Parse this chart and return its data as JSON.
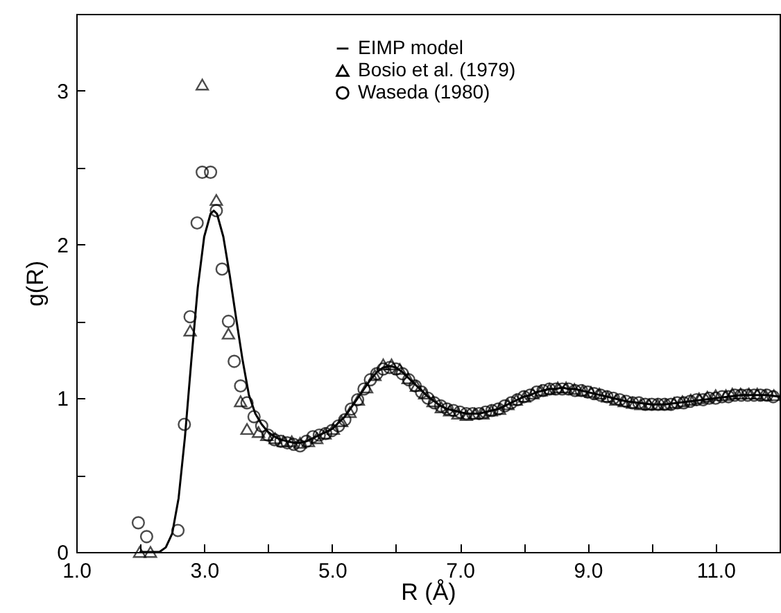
{
  "chart_data": {
    "type": "line",
    "xlabel": "R (Å)",
    "ylabel": "g(R)",
    "xlim": [
      1,
      12
    ],
    "ylim": [
      0,
      3.5
    ],
    "xticks": [
      {
        "value": 1,
        "label": "1.0"
      },
      {
        "value": 2,
        "label": null
      },
      {
        "value": 3,
        "label": "3.0"
      },
      {
        "value": 4,
        "label": null
      },
      {
        "value": 5,
        "label": "5.0"
      },
      {
        "value": 6,
        "label": null
      },
      {
        "value": 7,
        "label": "7.0"
      },
      {
        "value": 8,
        "label": null
      },
      {
        "value": 9,
        "label": "9.0"
      },
      {
        "value": 10,
        "label": null
      },
      {
        "value": 11,
        "label": "11.0"
      },
      {
        "value": 12,
        "label": null
      }
    ],
    "yticks": [
      0,
      {
        "value": 0.5,
        "label": null
      },
      1,
      {
        "value": 1.5,
        "label": null
      },
      2,
      {
        "value": 2.5,
        "label": null
      },
      3
    ],
    "legend": "top right",
    "grid": false,
    "series": [
      {
        "name": "EIMP model",
        "marker": "none",
        "color": "#000000",
        "x": [
          2.0,
          2.3,
          2.4,
          2.5,
          2.6,
          2.7,
          2.8,
          2.9,
          3.0,
          3.1,
          3.15,
          3.2,
          3.3,
          3.4,
          3.5,
          3.6,
          3.7,
          3.8,
          3.9,
          4.0,
          4.1,
          4.2,
          4.3,
          4.4,
          4.5,
          4.6,
          4.7,
          4.8,
          4.9,
          5.0,
          5.1,
          5.2,
          5.3,
          5.4,
          5.5,
          5.6,
          5.7,
          5.8,
          5.9,
          6.0,
          6.1,
          6.2,
          6.3,
          6.4,
          6.5,
          6.6,
          6.7,
          6.8,
          6.9,
          7.0,
          7.1,
          7.2,
          7.3,
          7.4,
          7.5,
          7.6,
          7.7,
          7.8,
          7.9,
          8.0,
          8.1,
          8.2,
          8.3,
          8.4,
          8.5,
          8.6,
          8.7,
          8.8,
          8.9,
          9.0,
          9.2,
          9.4,
          9.6,
          9.8,
          10.0,
          10.2,
          10.4,
          10.6,
          10.8,
          11.0,
          11.2,
          11.4,
          11.6,
          11.8,
          12.0
        ],
        "values": [
          0,
          0,
          0.03,
          0.12,
          0.35,
          0.75,
          1.25,
          1.72,
          2.05,
          2.2,
          2.22,
          2.2,
          2.05,
          1.8,
          1.52,
          1.25,
          1.02,
          0.9,
          0.83,
          0.78,
          0.75,
          0.73,
          0.72,
          0.71,
          0.71,
          0.72,
          0.74,
          0.76,
          0.78,
          0.8,
          0.84,
          0.88,
          0.94,
          1.0,
          1.06,
          1.12,
          1.17,
          1.2,
          1.21,
          1.2,
          1.17,
          1.13,
          1.09,
          1.05,
          1.01,
          0.98,
          0.95,
          0.93,
          0.92,
          0.91,
          0.9,
          0.9,
          0.9,
          0.91,
          0.92,
          0.93,
          0.95,
          0.97,
          0.99,
          1.01,
          1.02,
          1.04,
          1.05,
          1.06,
          1.06,
          1.07,
          1.06,
          1.06,
          1.05,
          1.04,
          1.02,
          1.0,
          0.98,
          0.97,
          0.96,
          0.96,
          0.97,
          0.98,
          0.99,
          1.0,
          1.01,
          1.02,
          1.02,
          1.02,
          1.01
        ]
      },
      {
        "name": "Bosio et al. (1979)",
        "type": "scatter",
        "marker": "triangle",
        "color": "#000000",
        "x": [
          1.99,
          2.16,
          2.78,
          2.97,
          3.19,
          3.38,
          3.57,
          3.67,
          3.85,
          3.98,
          4.11,
          4.24,
          4.37,
          4.5,
          4.63,
          4.76,
          4.89,
          5.02,
          5.15,
          5.28,
          5.41,
          5.54,
          5.67,
          5.8,
          5.93,
          6.06,
          6.19,
          6.32,
          6.45,
          6.58,
          6.71,
          6.84,
          6.97,
          7.1,
          7.23,
          7.36,
          7.49,
          7.62,
          7.75,
          7.88,
          8.01,
          8.14,
          8.27,
          8.4,
          8.53,
          8.66,
          8.79,
          8.92,
          9.05,
          9.18,
          9.31,
          9.44,
          9.57,
          9.7,
          9.83,
          9.96,
          10.09,
          10.22,
          10.35,
          10.48,
          10.61,
          10.74,
          10.87,
          11.0,
          11.16,
          11.26,
          11.39,
          11.52,
          11.65,
          11.78,
          11.91
        ],
        "values": [
          0,
          0,
          1.44,
          3.04,
          2.29,
          1.42,
          0.98,
          0.8,
          0.78,
          0.76,
          0.74,
          0.72,
          0.72,
          0.71,
          0.72,
          0.74,
          0.77,
          0.8,
          0.85,
          0.91,
          0.99,
          1.07,
          1.15,
          1.22,
          1.22,
          1.19,
          1.13,
          1.08,
          1.03,
          0.98,
          0.94,
          0.92,
          0.9,
          0.89,
          0.9,
          0.9,
          0.92,
          0.93,
          0.96,
          0.99,
          1.01,
          1.03,
          1.05,
          1.06,
          1.07,
          1.07,
          1.06,
          1.05,
          1.04,
          1.03,
          1.01,
          0.99,
          0.98,
          0.97,
          0.96,
          0.96,
          0.96,
          0.96,
          0.97,
          0.98,
          0.99,
          1.0,
          1.01,
          1.02,
          1.02,
          1.03,
          1.03,
          1.03,
          1.03,
          1.02,
          1.02
        ]
      },
      {
        "name": "Waseda (1980)",
        "type": "scatter",
        "marker": "circle",
        "color": "#000000",
        "x": [
          1.97,
          2.1,
          2.59,
          2.69,
          2.78,
          2.89,
          2.97,
          3.1,
          3.19,
          3.28,
          3.38,
          3.47,
          3.57,
          3.67,
          3.78,
          3.9,
          4.0,
          4.1,
          4.2,
          4.3,
          4.4,
          4.5,
          4.6,
          4.7,
          4.8,
          4.9,
          5.0,
          5.1,
          5.2,
          5.3,
          5.4,
          5.5,
          5.6,
          5.7,
          5.8,
          5.9,
          6.0,
          6.1,
          6.2,
          6.3,
          6.4,
          6.5,
          6.6,
          6.7,
          6.8,
          6.9,
          7.0,
          7.1,
          7.2,
          7.3,
          7.4,
          7.5,
          7.6,
          7.7,
          7.8,
          7.9,
          8.0,
          8.1,
          8.2,
          8.3,
          8.4,
          8.5,
          8.6,
          8.7,
          8.8,
          8.9,
          9.0,
          9.1,
          9.2,
          9.3,
          9.4,
          9.5,
          9.6,
          9.7,
          9.8,
          9.9,
          10.0,
          10.1,
          10.2,
          10.3,
          10.4,
          10.5,
          10.6,
          10.7,
          10.8,
          10.9,
          11.0,
          11.1,
          11.2,
          11.3,
          11.4,
          11.5,
          11.6,
          11.7,
          11.8,
          11.9
        ],
        "values": [
          0.19,
          0.1,
          0.14,
          0.83,
          1.53,
          2.14,
          2.47,
          2.47,
          2.22,
          1.84,
          1.5,
          1.24,
          1.08,
          0.97,
          0.88,
          0.82,
          0.76,
          0.73,
          0.72,
          0.71,
          0.7,
          0.69,
          0.72,
          0.75,
          0.76,
          0.77,
          0.79,
          0.82,
          0.86,
          0.93,
          0.99,
          1.06,
          1.12,
          1.16,
          1.19,
          1.2,
          1.19,
          1.16,
          1.12,
          1.08,
          1.04,
          1.0,
          0.97,
          0.95,
          0.93,
          0.92,
          0.91,
          0.9,
          0.9,
          0.9,
          0.91,
          0.92,
          0.93,
          0.95,
          0.97,
          0.99,
          1.01,
          1.02,
          1.04,
          1.05,
          1.06,
          1.06,
          1.06,
          1.06,
          1.05,
          1.05,
          1.04,
          1.03,
          1.02,
          1.01,
          1.0,
          0.99,
          0.98,
          0.97,
          0.97,
          0.96,
          0.96,
          0.96,
          0.96,
          0.96,
          0.97,
          0.97,
          0.98,
          0.99,
          0.99,
          1.0,
          1.0,
          1.01,
          1.01,
          1.02,
          1.02,
          1.02,
          1.02,
          1.02,
          1.02,
          1.01
        ]
      }
    ]
  }
}
